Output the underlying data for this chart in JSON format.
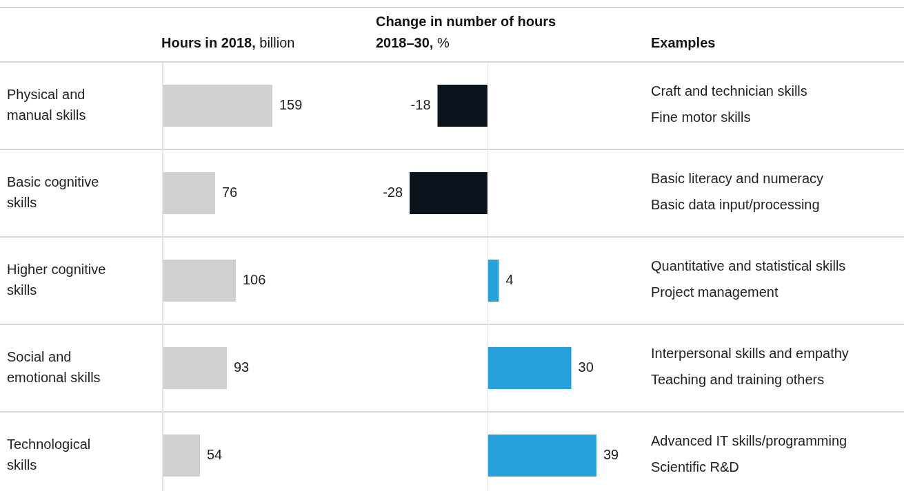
{
  "chart_data": [
    {
      "type": "bar",
      "title": "Hours in 2018, billion",
      "orientation": "horizontal",
      "categories": [
        "Physical and manual skills",
        "Basic cognitive skills",
        "Higher cognitive skills",
        "Social and emotional skills",
        "Technological skills"
      ],
      "values": [
        159,
        76,
        106,
        93,
        54
      ],
      "color": "#d0d0d0",
      "data_labels": true,
      "tick_labels": "y"
    },
    {
      "type": "bar",
      "title": "Change in number of hours 2018–30, %",
      "orientation": "horizontal",
      "categories": [
        null,
        null,
        null,
        null,
        null
      ],
      "values": [
        -18,
        -28,
        4,
        30,
        39
      ],
      "colors": [
        "#0a121c",
        "#0a121c",
        "#27a1dc",
        "#27a1dc",
        "#27a1dc"
      ],
      "data_labels": true,
      "tick_labels": false
    },
    {
      "type": "other",
      "title": "Examples",
      "annotations": [
        "Craft and technician skills",
        "Fine motor skills",
        "Basic literacy and numeracy",
        "Basic data input/processing",
        "Quantitative and statistical skills",
        "Project management",
        "Interpersonal skills and empathy",
        "Teaching and training others",
        "Advanced IT skills/programming",
        "Scientific R&D"
      ]
    }
  ]
}
